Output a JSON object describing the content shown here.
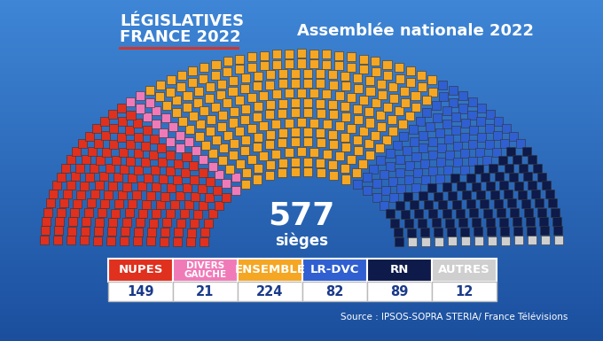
{
  "chart_data": {
    "type": "parliament",
    "title": "LÉGISLATIVES\nFRANCE 2022",
    "subtitle": "Assemblée nationale 2022",
    "total": 577,
    "total_label": "sièges",
    "categories": [
      "NUPES",
      "DIVERS\nGAUCHE",
      "ENSEMBLE",
      "LR-DVC",
      "RN",
      "AUTRES"
    ],
    "values": [
      149,
      21,
      224,
      82,
      89,
      12
    ],
    "colors": [
      "#e0301e",
      "#f07ab8",
      "#f5a623",
      "#2f5fd0",
      "#0d1a4a",
      "#cfcfcf"
    ],
    "source": "Source : IPSOS-SOPRA STERIA/ France Télévisions"
  }
}
